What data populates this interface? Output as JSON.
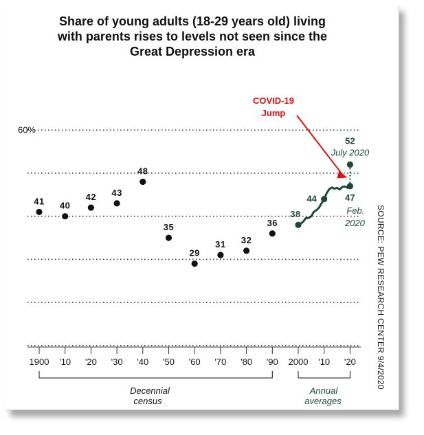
{
  "chart_data": {
    "type": "line",
    "title_lines": [
      "Share of young adults (18-29 years old) living",
      "with parents rises to levels not seen since the",
      "Great Depression era"
    ],
    "y_axis": {
      "min": 0,
      "max": 60,
      "gridlines": [
        10,
        20,
        30,
        40,
        50,
        60
      ],
      "top_tick_label": "60%"
    },
    "x_axis": {
      "tick_years": [
        1900,
        1910,
        1920,
        1930,
        1940,
        1950,
        1960,
        1970,
        1980,
        1990,
        2000,
        2010,
        2020
      ],
      "tick_labels": [
        "1900",
        "'10",
        "'20",
        "'30",
        "'40",
        "'50",
        "'60",
        "'70",
        "'80",
        "'90",
        "2000",
        "'10",
        "'20"
      ]
    },
    "decennial": {
      "years": [
        1900,
        1910,
        1920,
        1930,
        1940,
        1950,
        1960,
        1970,
        1980,
        1990,
        2000
      ],
      "values": [
        41,
        40,
        42,
        43,
        48,
        35,
        29,
        31,
        32,
        36,
        38
      ],
      "labels": [
        "41",
        "40",
        "42",
        "43",
        "48",
        "35",
        "29",
        "31",
        "32",
        "36",
        "38"
      ]
    },
    "annual": {
      "x": [
        2000,
        2001,
        2002,
        2003,
        2004,
        2005,
        2006,
        2007,
        2008,
        2009,
        2010,
        2011,
        2012,
        2013,
        2014,
        2015,
        2016,
        2017,
        2018,
        2019,
        2020
      ],
      "y": [
        38,
        38.3,
        38.8,
        39.6,
        39.6,
        40,
        41,
        41.4,
        42,
        43,
        44,
        45.4,
        46.3,
        46.7,
        46.4,
        46.6,
        46.2,
        46.8,
        46.9,
        46.6,
        47
      ]
    },
    "point_2010_label": "44",
    "feb2020": {
      "x": 2020,
      "y": 47,
      "value_label": "47",
      "date_lines": [
        "Feb.",
        "2020"
      ]
    },
    "jul2020": {
      "x": 2020,
      "y": 52,
      "value_label": "52",
      "date_label": "July 2020"
    },
    "annotation_lines": [
      "COVID-19",
      "Jump"
    ],
    "bracket_labels": {
      "decennial": [
        "Decennial",
        "census"
      ],
      "annual": [
        "Annual",
        "averages"
      ]
    }
  },
  "source": "SOURCE: PEW RESEARCH CENTER 9/4/2020",
  "colors": {
    "background": "#ffffff",
    "text": "#111111",
    "series_green": "#1d4a35",
    "point_black": "#111111",
    "grid": "#333333",
    "annotation_red": "#e0110f"
  }
}
